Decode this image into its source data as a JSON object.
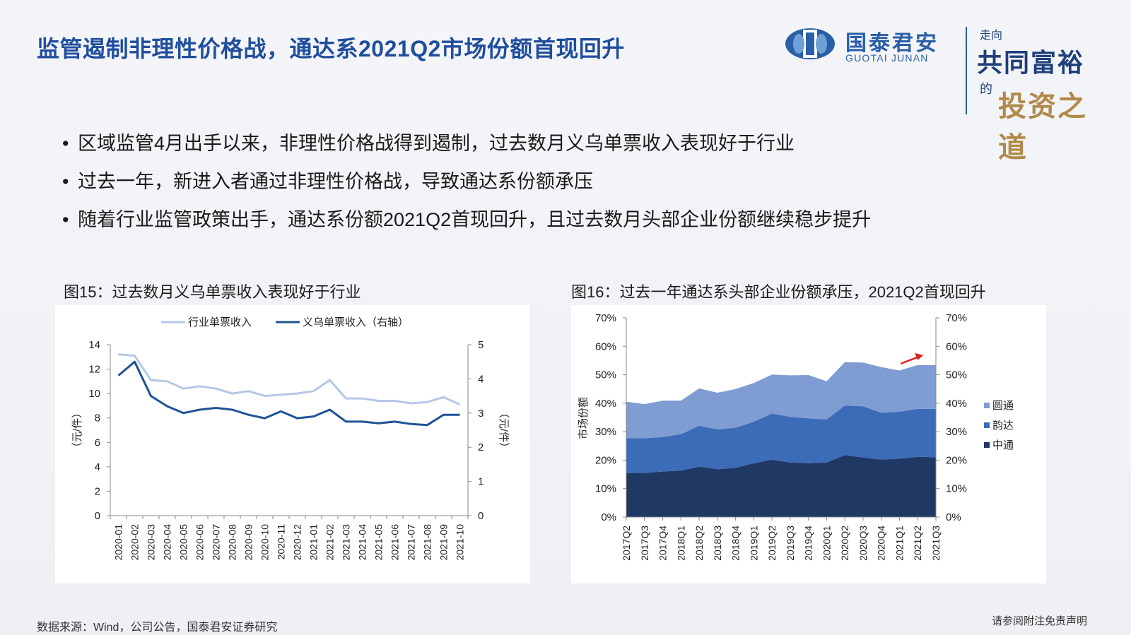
{
  "title": "监管遏制非理性价格战，通达系2021Q2市场份额首现回升",
  "brand": {
    "cn": "国泰君安",
    "en": "GUOTAI JUNAN",
    "color": "#2a5fa8"
  },
  "slogan": {
    "line1": "走向",
    "line2": "共同富裕",
    "line3": "的",
    "line4": "投资之道"
  },
  "bullets": [
    "区域监管4月出手以来，非理性价格战得到遏制，过去数月义乌单票收入表现好于行业",
    "过去一年，新进入者通过非理性价格战，导致通达系份额承压",
    "随着行业监管政策出手，通达系份额2021Q2首现回升，且过去数月头部企业份额继续稳步提升"
  ],
  "figure15": {
    "caption": "图15：过去数月义乌单票收入表现好于行业"
  },
  "figure16": {
    "caption": "图16：过去一年通达系头部企业份额承压，2021Q2首现回升"
  },
  "footer": {
    "source": "数据来源：Wind，公司公告，国泰君安证券研究",
    "disclaimer": "请参阅附注免责声明"
  },
  "chart_data": [
    {
      "type": "line",
      "categories": [
        "2020-01",
        "2020-02",
        "2020-03",
        "2020-04",
        "2020-05",
        "2020-06",
        "2020-07",
        "2020-08",
        "2020-09",
        "2020-10",
        "2020-11",
        "2020-12",
        "2021-01",
        "2021-02",
        "2021-03",
        "2021-04",
        "2021-05",
        "2021-06",
        "2021-07",
        "2021-08",
        "2021-09",
        "2021-10"
      ],
      "series": [
        {
          "name": "行业单票收入",
          "axis": "left",
          "color": "#b4c7e7",
          "values": [
            13.2,
            13.1,
            11.1,
            11.0,
            10.4,
            10.6,
            10.4,
            10.0,
            10.2,
            9.8,
            9.9,
            10.0,
            10.2,
            11.1,
            9.6,
            9.6,
            9.4,
            9.4,
            9.2,
            9.3,
            9.7,
            9.1
          ]
        },
        {
          "name": "义乌单票收入（右轴）",
          "axis": "right",
          "color": "#1f5396",
          "values": [
            4.1,
            4.5,
            3.5,
            3.2,
            3.0,
            3.1,
            3.15,
            3.1,
            2.95,
            2.85,
            3.05,
            2.85,
            2.9,
            3.1,
            2.75,
            2.75,
            2.7,
            2.75,
            2.68,
            2.65,
            2.95,
            2.95
          ]
        }
      ],
      "ylabel": "（元/件）",
      "ylabel_right": "（元/件）",
      "ylim": [
        0,
        14
      ],
      "yticks": [
        0,
        2,
        4,
        6,
        8,
        10,
        12,
        14
      ],
      "ylim_right": [
        0,
        5
      ],
      "yticks_right": [
        0,
        1,
        2,
        3,
        4,
        5
      ],
      "legend": "top"
    },
    {
      "type": "area",
      "stacked": true,
      "categories": [
        "2017Q2",
        "2017Q3",
        "2017Q4",
        "2018Q1",
        "2018Q2",
        "2018Q3",
        "2018Q4",
        "2019Q1",
        "2019Q2",
        "2019Q3",
        "2019Q4",
        "2020Q1",
        "2020Q2",
        "2020Q3",
        "2020Q4",
        "2021Q1",
        "2021Q2",
        "2021Q3"
      ],
      "series": [
        {
          "name": "中通",
          "color": "#1f3864",
          "values": [
            15.5,
            15.5,
            16.0,
            16.3,
            17.7,
            16.8,
            17.3,
            18.9,
            20.2,
            19.2,
            18.9,
            19.2,
            21.8,
            20.9,
            20.2,
            20.5,
            21.2,
            21.0
          ]
        },
        {
          "name": "韵达",
          "color": "#3c6bb8",
          "values": [
            12.2,
            12.2,
            12.1,
            12.8,
            14.4,
            14.0,
            14.1,
            14.6,
            16.2,
            16.0,
            15.8,
            15.1,
            17.4,
            18.0,
            16.5,
            16.5,
            16.8,
            17.0
          ]
        },
        {
          "name": "圆通",
          "color": "#7f9cd3",
          "values": [
            12.8,
            12.0,
            12.8,
            11.8,
            13.1,
            12.9,
            13.6,
            13.6,
            13.7,
            14.6,
            15.2,
            13.4,
            15.2,
            15.4,
            16.0,
            14.5,
            15.4,
            15.4
          ]
        }
      ],
      "ylabel": "市场份额",
      "ylim": [
        0,
        70
      ],
      "yticks": [
        "0%",
        "10%",
        "20%",
        "30%",
        "40%",
        "50%",
        "60%",
        "70%"
      ],
      "annotation": {
        "type": "arrow",
        "color": "#e02020",
        "near": "2021Q2"
      },
      "legend": "right"
    }
  ]
}
